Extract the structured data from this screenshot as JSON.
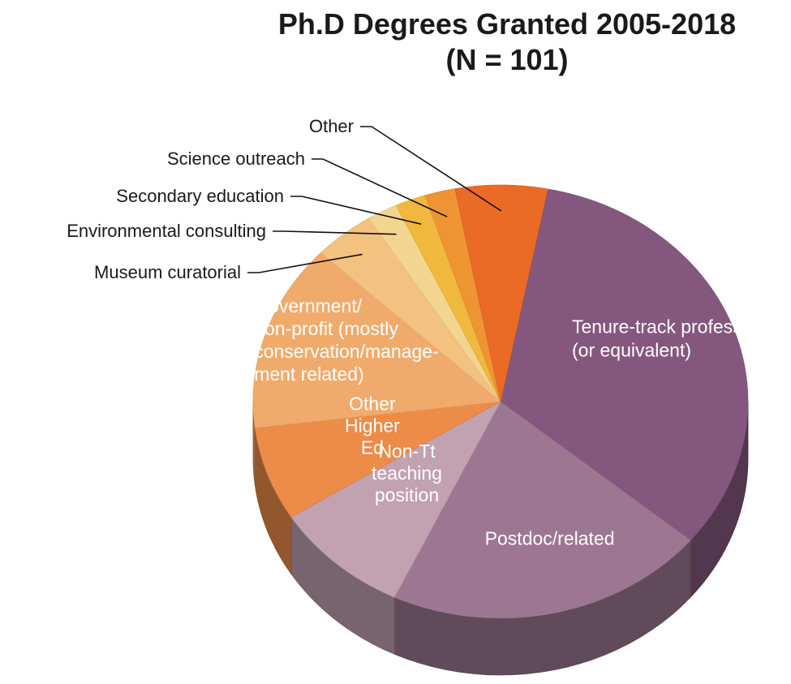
{
  "chart_data": {
    "type": "pie",
    "title_lines": [
      "Ph.D Degrees Granted 2005-2018",
      "(N = 101)"
    ],
    "slices": [
      {
        "label": "Tenure-track professor (or equivalent)",
        "label_lines": [
          "Tenure-track professor",
          "(or equivalent)"
        ],
        "value": 33,
        "color": "#84587e",
        "label_placement": "inside"
      },
      {
        "label": "Postdoc/related",
        "label_lines": [
          "Postdoc/related"
        ],
        "value": 21,
        "color": "#9d7791",
        "label_placement": "inside"
      },
      {
        "label": "Non-Tt teaching position",
        "label_lines": [
          "Non-Tt",
          "teaching",
          "position"
        ],
        "value": 9,
        "color": "#c2a2b1",
        "label_placement": "inside"
      },
      {
        "label": "Other Higher Ed",
        "label_lines": [
          "Other",
          "Higher",
          "Ed"
        ],
        "value": 7,
        "color": "#ec8c48",
        "label_placement": "inside"
      },
      {
        "label": "Government/ non-profit (mostly conservation/management related)",
        "label_lines": [
          "Government/",
          "non-profit (mostly",
          "conservation/manage-",
          "ment related)"
        ],
        "value": 14,
        "color": "#f0ab6c",
        "label_placement": "inside"
      },
      {
        "label": "Museum curatorial",
        "label_lines": [
          "Museum curatorial"
        ],
        "value": 4,
        "color": "#f3c27f",
        "label_placement": "outside"
      },
      {
        "label": "Environmental consulting",
        "label_lines": [
          "Environmental consulting"
        ],
        "value": 2,
        "color": "#f3d592",
        "label_placement": "outside"
      },
      {
        "label": "Secondary education",
        "label_lines": [
          "Secondary education"
        ],
        "value": 2,
        "color": "#f0b83c",
        "label_placement": "outside"
      },
      {
        "label": "Science outreach",
        "label_lines": [
          "Science outreach"
        ],
        "value": 2,
        "color": "#ee9432",
        "label_placement": "outside"
      },
      {
        "label": "Other",
        "label_lines": [
          "Other"
        ],
        "value": 6,
        "color": "#eb6a26",
        "label_placement": "outside"
      }
    ],
    "style": "3d-tilted-pie",
    "start_angle_deg": 11,
    "direction": "clockwise"
  }
}
